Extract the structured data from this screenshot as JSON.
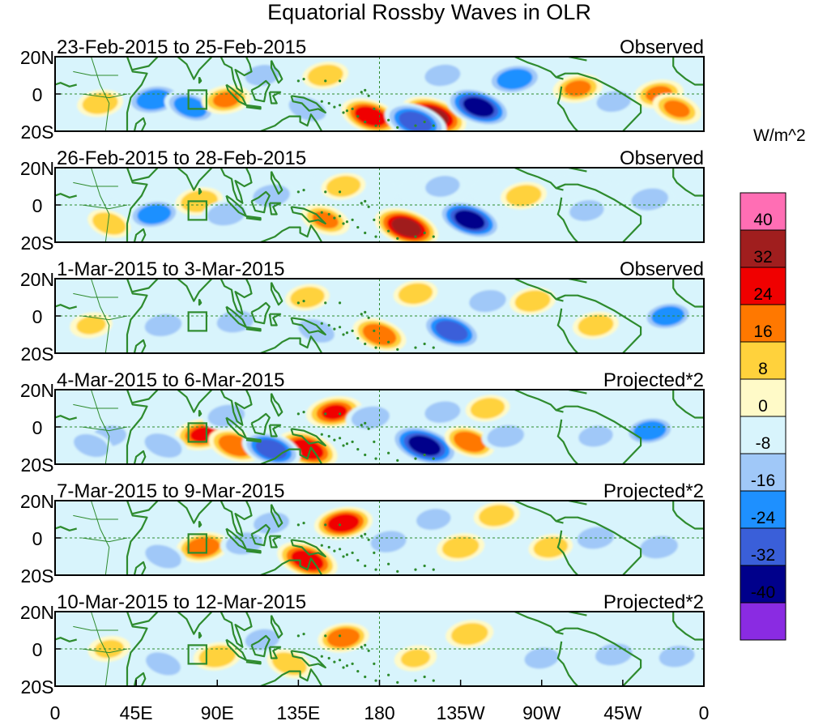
{
  "title": "Equatorial Rossby Waves in OLR",
  "chart_data": {
    "type": "heatmap",
    "title": "Equatorial Rossby Waves in OLR",
    "x_ticks": [
      "0",
      "45E",
      "90E",
      "135E",
      "180",
      "135W",
      "90W",
      "45W",
      "0"
    ],
    "y_ticks": [
      "20N",
      "0",
      "20S"
    ],
    "xlim": [
      0,
      360
    ],
    "ylim": [
      -20,
      20
    ],
    "colorbar": {
      "units": "W/m^2",
      "tick_labels": [
        "40",
        "32",
        "24",
        "16",
        "8",
        "0",
        "-8",
        "-16",
        "-24",
        "-32",
        "-40"
      ],
      "levels": [
        -40,
        -32,
        -24,
        -16,
        -8,
        0,
        8,
        16,
        24,
        32,
        40
      ],
      "colors": [
        "#8a2be2",
        "#00008b",
        "#3a5fd9",
        "#1e90ff",
        "#a0c8f8",
        "#d8f4fc",
        "#fffac8",
        "#ffd23c",
        "#ff7800",
        "#f00000",
        "#a01e1e",
        "#ff6eb4"
      ]
    },
    "panels": [
      {
        "date_range": "23-Feb-2015 to 25-Feb-2015",
        "label": "Observed",
        "anomalies": [
          {
            "lon": 210,
            "lat": -12,
            "value": 36
          },
          {
            "lon": 175,
            "lat": -12,
            "value": 28
          },
          {
            "lon": 235,
            "lat": -7,
            "value": -36
          },
          {
            "lon": 200,
            "lat": -15,
            "value": -32
          },
          {
            "lon": 55,
            "lat": -3,
            "value": -24
          },
          {
            "lon": 75,
            "lat": -7,
            "value": -20
          },
          {
            "lon": 95,
            "lat": -3,
            "value": 16
          },
          {
            "lon": 140,
            "lat": -8,
            "value": -16
          },
          {
            "lon": 255,
            "lat": 8,
            "value": -24
          },
          {
            "lon": 290,
            "lat": 3,
            "value": 16
          },
          {
            "lon": 335,
            "lat": 0,
            "value": 16
          },
          {
            "lon": 345,
            "lat": -8,
            "value": 16
          },
          {
            "lon": 150,
            "lat": 10,
            "value": 12
          },
          {
            "lon": 215,
            "lat": 10,
            "value": -12
          },
          {
            "lon": 25,
            "lat": -5,
            "value": 12
          },
          {
            "lon": 115,
            "lat": 10,
            "value": -10
          },
          {
            "lon": 310,
            "lat": -4,
            "value": -10
          }
        ]
      },
      {
        "date_range": "26-Feb-2015 to 28-Feb-2015",
        "label": "Observed",
        "anomalies": [
          {
            "lon": 195,
            "lat": -12,
            "value": 34
          },
          {
            "lon": 230,
            "lat": -8,
            "value": -34
          },
          {
            "lon": 55,
            "lat": -5,
            "value": -20
          },
          {
            "lon": 80,
            "lat": 2,
            "value": 14
          },
          {
            "lon": 95,
            "lat": -5,
            "value": -16
          },
          {
            "lon": 120,
            "lat": 5,
            "value": -14
          },
          {
            "lon": 150,
            "lat": -8,
            "value": 16
          },
          {
            "lon": 160,
            "lat": 10,
            "value": 10
          },
          {
            "lon": 215,
            "lat": 10,
            "value": -10
          },
          {
            "lon": 260,
            "lat": 5,
            "value": 12
          },
          {
            "lon": 295,
            "lat": -3,
            "value": -10
          },
          {
            "lon": 330,
            "lat": 3,
            "value": -14
          },
          {
            "lon": 30,
            "lat": -10,
            "value": 10
          }
        ]
      },
      {
        "date_range": "1-Mar-2015 to 3-Mar-2015",
        "label": "Observed",
        "anomalies": [
          {
            "lon": 180,
            "lat": -10,
            "value": 22
          },
          {
            "lon": 220,
            "lat": -8,
            "value": -30
          },
          {
            "lon": 60,
            "lat": -5,
            "value": -14
          },
          {
            "lon": 100,
            "lat": -3,
            "value": -14
          },
          {
            "lon": 145,
            "lat": -8,
            "value": -14
          },
          {
            "lon": 140,
            "lat": 10,
            "value": 10
          },
          {
            "lon": 200,
            "lat": 12,
            "value": 10
          },
          {
            "lon": 240,
            "lat": 8,
            "value": -14
          },
          {
            "lon": 265,
            "lat": 8,
            "value": 12
          },
          {
            "lon": 300,
            "lat": -5,
            "value": 12
          },
          {
            "lon": 340,
            "lat": 0,
            "value": -18
          },
          {
            "lon": 20,
            "lat": -5,
            "value": 8
          }
        ]
      },
      {
        "date_range": "4-Mar-2015 to 6-Mar-2015",
        "label": "Projected*2",
        "anomalies": [
          {
            "lon": 205,
            "lat": -10,
            "value": -40
          },
          {
            "lon": 140,
            "lat": -12,
            "value": 30
          },
          {
            "lon": 155,
            "lat": 8,
            "value": 24
          },
          {
            "lon": 82,
            "lat": -4,
            "value": 24
          },
          {
            "lon": 100,
            "lat": -10,
            "value": 22
          },
          {
            "lon": 120,
            "lat": -12,
            "value": -28
          },
          {
            "lon": 60,
            "lat": -10,
            "value": -16
          },
          {
            "lon": 95,
            "lat": 6,
            "value": -14
          },
          {
            "lon": 175,
            "lat": 5,
            "value": -16
          },
          {
            "lon": 230,
            "lat": -8,
            "value": 18
          },
          {
            "lon": 240,
            "lat": 10,
            "value": 10
          },
          {
            "lon": 250,
            "lat": -5,
            "value": -14
          },
          {
            "lon": 215,
            "lat": 8,
            "value": -12
          },
          {
            "lon": 330,
            "lat": -2,
            "value": -18
          },
          {
            "lon": 300,
            "lat": -5,
            "value": -10
          },
          {
            "lon": 30,
            "lat": -5,
            "value": -10
          },
          {
            "lon": 20,
            "lat": -10,
            "value": -12
          }
        ]
      },
      {
        "date_range": "7-Mar-2015 to 9-Mar-2015",
        "label": "Projected*2",
        "anomalies": [
          {
            "lon": 160,
            "lat": 8,
            "value": 26
          },
          {
            "lon": 140,
            "lat": -12,
            "value": 30
          },
          {
            "lon": 82,
            "lat": -5,
            "value": 20
          },
          {
            "lon": 105,
            "lat": -3,
            "value": -14
          },
          {
            "lon": 60,
            "lat": -10,
            "value": -14
          },
          {
            "lon": 120,
            "lat": 8,
            "value": -12
          },
          {
            "lon": 185,
            "lat": -2,
            "value": -12
          },
          {
            "lon": 225,
            "lat": -5,
            "value": 14
          },
          {
            "lon": 245,
            "lat": 12,
            "value": 12
          },
          {
            "lon": 275,
            "lat": -5,
            "value": 10
          },
          {
            "lon": 300,
            "lat": 0,
            "value": -14
          },
          {
            "lon": 335,
            "lat": -5,
            "value": -16
          },
          {
            "lon": 210,
            "lat": 10,
            "value": -10
          }
        ]
      },
      {
        "date_range": "10-Mar-2015 to 12-Mar-2015",
        "label": "Projected*2",
        "anomalies": [
          {
            "lon": 160,
            "lat": 6,
            "value": 18
          },
          {
            "lon": 90,
            "lat": -4,
            "value": 14
          },
          {
            "lon": 130,
            "lat": -8,
            "value": 12
          },
          {
            "lon": 60,
            "lat": -8,
            "value": -12
          },
          {
            "lon": 115,
            "lat": 5,
            "value": -10
          },
          {
            "lon": 230,
            "lat": 8,
            "value": 14
          },
          {
            "lon": 270,
            "lat": -5,
            "value": -10
          },
          {
            "lon": 310,
            "lat": -3,
            "value": -14
          },
          {
            "lon": 345,
            "lat": -4,
            "value": -12
          },
          {
            "lon": 200,
            "lat": -5,
            "value": 8
          },
          {
            "lon": 30,
            "lat": 0,
            "value": 8
          }
        ]
      }
    ],
    "grid": false,
    "reference_lines": [
      "equator (0)",
      "dateline (180)"
    ]
  },
  "colors": {
    "coast": "#2e8b2e",
    "box": "#2e8b2e",
    "reference_line": "#2e8b2e"
  }
}
